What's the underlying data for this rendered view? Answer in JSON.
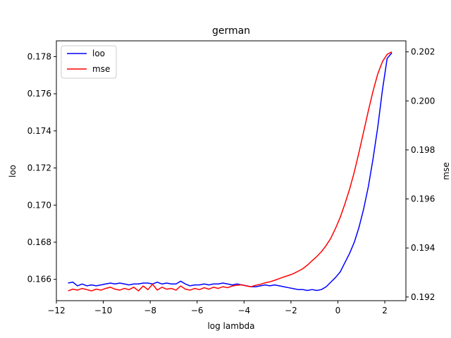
{
  "chart_data": {
    "type": "line",
    "title": "german",
    "xlabel": "log lambda",
    "ylabel_left": "loo",
    "ylabel_right": "mse",
    "xlim": [
      -12.0,
      2.9
    ],
    "ylim_left": [
      0.16485,
      0.17885
    ],
    "ylim_right": [
      0.19185,
      0.20245
    ],
    "x_ticks": [
      -12,
      -10,
      -8,
      -6,
      -4,
      -2,
      0,
      2
    ],
    "y_ticks_left": [
      0.166,
      0.168,
      0.17,
      0.172,
      0.174,
      0.176,
      0.178
    ],
    "y_ticks_right": [
      0.192,
      0.194,
      0.196,
      0.198,
      0.2,
      0.202
    ],
    "legend_position": "upper-left",
    "series": [
      {
        "name": "loo",
        "axis": "left",
        "color": "#0000ff",
        "x": [
          -11.5,
          -11.3,
          -11.1,
          -10.9,
          -10.7,
          -10.5,
          -10.3,
          -10.1,
          -9.9,
          -9.7,
          -9.5,
          -9.3,
          -9.1,
          -8.9,
          -8.7,
          -8.5,
          -8.3,
          -8.1,
          -7.9,
          -7.7,
          -7.5,
          -7.3,
          -7.1,
          -6.9,
          -6.7,
          -6.5,
          -6.3,
          -6.1,
          -5.9,
          -5.7,
          -5.5,
          -5.3,
          -5.1,
          -4.9,
          -4.7,
          -4.5,
          -4.3,
          -4.1,
          -3.9,
          -3.7,
          -3.5,
          -3.3,
          -3.1,
          -2.9,
          -2.7,
          -2.5,
          -2.3,
          -2.1,
          -1.9,
          -1.7,
          -1.5,
          -1.3,
          -1.1,
          -0.9,
          -0.7,
          -0.5,
          -0.3,
          -0.1,
          0.1,
          0.3,
          0.5,
          0.7,
          0.9,
          1.1,
          1.3,
          1.5,
          1.7,
          1.9,
          2.1,
          2.3
        ],
        "y": [
          0.1658,
          0.16585,
          0.16565,
          0.16575,
          0.16565,
          0.1657,
          0.16565,
          0.1657,
          0.16575,
          0.1658,
          0.16575,
          0.1658,
          0.16575,
          0.1657,
          0.16575,
          0.16575,
          0.1658,
          0.1658,
          0.16575,
          0.16585,
          0.16575,
          0.1658,
          0.16575,
          0.16575,
          0.1659,
          0.16575,
          0.16565,
          0.1657,
          0.1657,
          0.16575,
          0.1657,
          0.16575,
          0.16575,
          0.1658,
          0.16575,
          0.1657,
          0.16575,
          0.1657,
          0.16565,
          0.1656,
          0.1656,
          0.16565,
          0.1657,
          0.16565,
          0.1657,
          0.16565,
          0.1656,
          0.16555,
          0.1655,
          0.16545,
          0.16545,
          0.1654,
          0.16545,
          0.1654,
          0.16545,
          0.1656,
          0.16585,
          0.1661,
          0.1664,
          0.1669,
          0.1674,
          0.168,
          0.1688,
          0.1698,
          0.171,
          0.1725,
          0.1742,
          0.1762,
          0.1779,
          0.1782
        ]
      },
      {
        "name": "mse",
        "axis": "right",
        "color": "#ff0000",
        "x": [
          -11.5,
          -11.3,
          -11.1,
          -10.9,
          -10.7,
          -10.5,
          -10.3,
          -10.1,
          -9.9,
          -9.7,
          -9.5,
          -9.3,
          -9.1,
          -8.9,
          -8.7,
          -8.5,
          -8.3,
          -8.1,
          -7.9,
          -7.7,
          -7.5,
          -7.3,
          -7.1,
          -6.9,
          -6.7,
          -6.5,
          -6.3,
          -6.1,
          -5.9,
          -5.7,
          -5.5,
          -5.3,
          -5.1,
          -4.9,
          -4.7,
          -4.5,
          -4.3,
          -4.1,
          -3.9,
          -3.7,
          -3.5,
          -3.3,
          -3.1,
          -2.9,
          -2.7,
          -2.5,
          -2.3,
          -2.1,
          -1.9,
          -1.7,
          -1.5,
          -1.3,
          -1.1,
          -0.9,
          -0.7,
          -0.5,
          -0.3,
          -0.1,
          0.1,
          0.3,
          0.5,
          0.7,
          0.9,
          1.1,
          1.3,
          1.5,
          1.7,
          1.9,
          2.1,
          2.3
        ],
        "y": [
          0.19225,
          0.19232,
          0.19228,
          0.19235,
          0.1923,
          0.19225,
          0.19232,
          0.19228,
          0.19235,
          0.1924,
          0.19232,
          0.19228,
          0.19235,
          0.1923,
          0.1924,
          0.19225,
          0.19245,
          0.1923,
          0.19252,
          0.19228,
          0.1924,
          0.19232,
          0.19235,
          0.19228,
          0.19245,
          0.19232,
          0.19228,
          0.19235,
          0.1923,
          0.19238,
          0.19232,
          0.1924,
          0.19235,
          0.19242,
          0.19238,
          0.19245,
          0.19248,
          0.1925,
          0.19245,
          0.19242,
          0.19248,
          0.19252,
          0.19258,
          0.19262,
          0.19268,
          0.19275,
          0.19282,
          0.19288,
          0.19295,
          0.19305,
          0.19315,
          0.1933,
          0.19348,
          0.19365,
          0.19385,
          0.1941,
          0.1944,
          0.1948,
          0.19525,
          0.1958,
          0.1964,
          0.1971,
          0.1979,
          0.19875,
          0.1996,
          0.2004,
          0.2011,
          0.2016,
          0.2019,
          0.202
        ]
      }
    ]
  }
}
